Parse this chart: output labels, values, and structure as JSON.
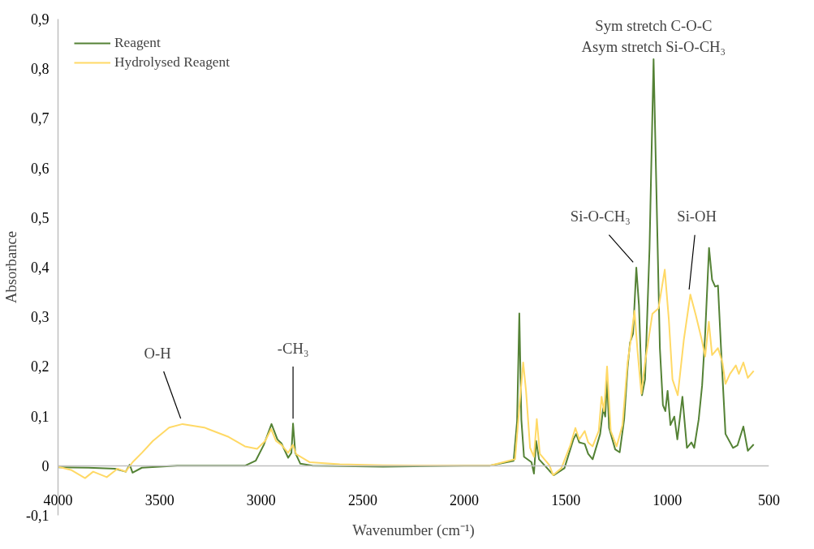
{
  "chart_data": {
    "type": "line",
    "xlabel": "Wavenumber (cm⁻¹)",
    "ylabel": "Absorbance",
    "xlim": [
      4000,
      500
    ],
    "ylim": [
      -0.1,
      0.9
    ],
    "xticks": [
      4000,
      3500,
      3000,
      2500,
      2000,
      1500,
      1000,
      500
    ],
    "yticks": [
      {
        "value": -0.1,
        "label": "-0,1"
      },
      0,
      {
        "value": 0.1,
        "label": "0,1"
      },
      {
        "value": 0.2,
        "label": "0,2"
      },
      {
        "value": 0.3,
        "label": "0,3"
      },
      {
        "value": 0.4,
        "label": "0,4"
      },
      {
        "value": 0.5,
        "label": "0,5"
      },
      {
        "value": 0.6,
        "label": "0,6"
      },
      {
        "value": 0.7,
        "label": "0,7"
      },
      {
        "value": 0.8,
        "label": "0,8"
      },
      {
        "value": 0.9,
        "label": "0,9"
      }
    ],
    "legend": "top left",
    "annotations": [
      {
        "text": "O-H",
        "x": 3390,
        "y": 0.085
      },
      {
        "text": "-CH₃",
        "x": 2843,
        "y": 0.085
      },
      {
        "text": "Si-O-CH₃",
        "x": 1160,
        "y": 0.4
      },
      {
        "text": "Si-OH",
        "x": 895,
        "y": 0.345
      },
      {
        "text": "Sym stretch C-O-C\nAsym stretch Si-O-CH₃",
        "x": 1068,
        "y": 0.82
      }
    ],
    "series": [
      {
        "name": "Reagent",
        "color": "#548235",
        "x": [
          4000,
          3850,
          3720,
          3667,
          3647,
          3633,
          3587,
          3413,
          3080,
          3027,
          2987,
          2949,
          2920,
          2900,
          2867,
          2851,
          2843,
          2832,
          2807,
          2747,
          2400,
          2000,
          1875,
          1757,
          1740,
          1729,
          1719,
          1706,
          1669,
          1657,
          1646,
          1632,
          1581,
          1559,
          1507,
          1463,
          1449,
          1434,
          1407,
          1390,
          1368,
          1331,
          1316,
          1306,
          1297,
          1287,
          1257,
          1235,
          1213,
          1196,
          1184,
          1169,
          1153,
          1140,
          1125,
          1110,
          1088,
          1068,
          1051,
          1037,
          1022,
          1010,
          999,
          985,
          966,
          951,
          926,
          904,
          882,
          868,
          846,
          829,
          814,
          795,
          780,
          765,
          751,
          736,
          714,
          677,
          655,
          626,
          604,
          575
        ],
        "values": [
          -0.003,
          -0.004,
          -0.006,
          -0.012,
          0.002,
          -0.014,
          -0.004,
          0.0,
          0.0,
          0.01,
          0.042,
          0.084,
          0.053,
          0.045,
          0.016,
          0.026,
          0.085,
          0.026,
          0.004,
          0.0,
          -0.002,
          0.0,
          0.0,
          0.01,
          0.09,
          0.307,
          0.093,
          0.018,
          0.007,
          -0.016,
          0.05,
          0.013,
          -0.01,
          -0.019,
          -0.005,
          0.053,
          0.064,
          0.047,
          0.044,
          0.024,
          0.013,
          0.064,
          0.116,
          0.099,
          0.174,
          0.076,
          0.033,
          0.027,
          0.093,
          0.197,
          0.248,
          0.266,
          0.399,
          0.323,
          0.142,
          0.174,
          0.438,
          0.819,
          0.496,
          0.237,
          0.122,
          0.11,
          0.151,
          0.082,
          0.099,
          0.053,
          0.139,
          0.036,
          0.047,
          0.036,
          0.093,
          0.162,
          0.266,
          0.439,
          0.375,
          0.361,
          0.363,
          0.237,
          0.064,
          0.036,
          0.041,
          0.079,
          0.03,
          0.043
        ]
      },
      {
        "name": "Hydrolysed Reagent",
        "color": "#ffd966",
        "x": [
          4000,
          3933,
          3867,
          3827,
          3760,
          3707,
          3667,
          3633,
          3587,
          3533,
          3453,
          3387,
          3280,
          3160,
          3080,
          3020,
          2980,
          2951,
          2927,
          2900,
          2867,
          2844,
          2827,
          2760,
          2613,
          2400,
          2000,
          1875,
          1750,
          1728,
          1710,
          1696,
          1676,
          1657,
          1643,
          1628,
          1581,
          1563,
          1522,
          1478,
          1453,
          1434,
          1407,
          1390,
          1368,
          1338,
          1324,
          1312,
          1297,
          1279,
          1250,
          1221,
          1196,
          1176,
          1162,
          1147,
          1128,
          1110,
          1074,
          1044,
          1013,
          993,
          975,
          949,
          919,
          887,
          860,
          831,
          814,
          796,
          780,
          751,
          729,
          714,
          692,
          663,
          648,
          626,
          604,
          575
        ],
        "values": [
          -0.002,
          -0.009,
          -0.025,
          -0.012,
          -0.023,
          -0.006,
          -0.012,
          0.007,
          0.026,
          0.05,
          0.077,
          0.084,
          0.077,
          0.058,
          0.039,
          0.034,
          0.05,
          0.074,
          0.05,
          0.042,
          0.026,
          0.042,
          0.023,
          0.007,
          0.003,
          0.001,
          0.0,
          0.0,
          0.013,
          0.122,
          0.208,
          0.151,
          0.036,
          0.018,
          0.094,
          0.024,
          0.001,
          -0.019,
          -0.005,
          0.041,
          0.076,
          0.053,
          0.07,
          0.047,
          0.039,
          0.07,
          0.139,
          0.11,
          0.2,
          0.07,
          0.039,
          0.082,
          0.208,
          0.266,
          0.312,
          0.231,
          0.145,
          0.208,
          0.306,
          0.317,
          0.395,
          0.295,
          0.174,
          0.142,
          0.254,
          0.345,
          0.303,
          0.254,
          0.22,
          0.29,
          0.223,
          0.237,
          0.208,
          0.165,
          0.185,
          0.202,
          0.185,
          0.208,
          0.177,
          0.191
        ]
      }
    ]
  }
}
